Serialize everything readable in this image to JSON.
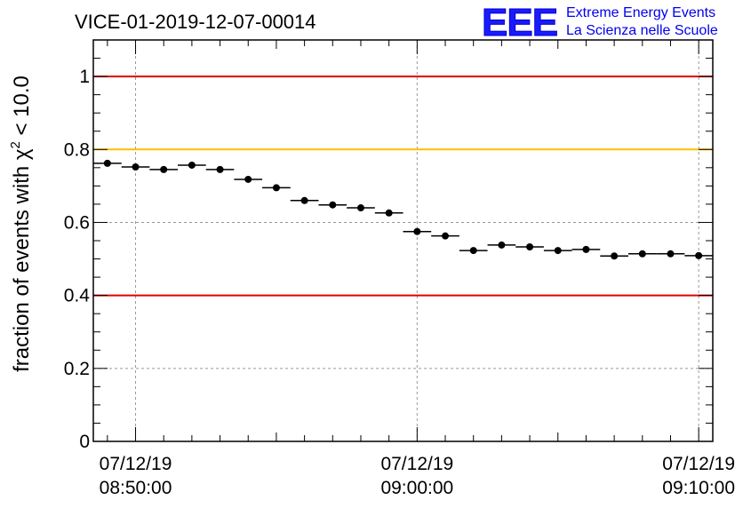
{
  "chart_data": {
    "type": "scatter",
    "title": "VICE-01-2019-12-07-00014",
    "ylabel": {
      "prefix": "fraction of events with ",
      "symbol": "χ",
      "superscript": "2",
      "suffix": " < 10.0"
    },
    "xlabel": "",
    "x_ticks": [
      {
        "date": "07/12/19",
        "time": "08:50:00"
      },
      {
        "date": "07/12/19",
        "time": "09:00:00"
      },
      {
        "date": "07/12/19",
        "time": "09:10:00"
      }
    ],
    "y_ticks": [
      "0",
      "0.2",
      "0.4",
      "0.6",
      "0.8",
      "1"
    ],
    "ylim": [
      0,
      1.1
    ],
    "xlim": [
      "08:48:30",
      "09:10:30"
    ],
    "grid": true,
    "bin_width_min": 1,
    "x": [
      "08:49:00",
      "08:50:00",
      "08:51:00",
      "08:52:00",
      "08:53:00",
      "08:54:00",
      "08:55:00",
      "08:56:00",
      "08:57:00",
      "08:58:00",
      "08:59:00",
      "09:00:00",
      "09:01:00",
      "09:02:00",
      "09:03:00",
      "09:04:00",
      "09:05:00",
      "09:06:00",
      "09:07:00",
      "09:08:00",
      "09:09:00",
      "09:10:00"
    ],
    "values": [
      0.762,
      0.752,
      0.745,
      0.757,
      0.745,
      0.718,
      0.695,
      0.66,
      0.648,
      0.64,
      0.626,
      0.575,
      0.563,
      0.523,
      0.538,
      0.533,
      0.523,
      0.526,
      0.508,
      0.514,
      0.514,
      0.509
    ],
    "reference_lines": [
      {
        "value": 1.0,
        "color": "#e00000"
      },
      {
        "value": 0.8,
        "color": "#ffc000"
      },
      {
        "value": 0.4,
        "color": "#e00000"
      }
    ]
  },
  "logo": {
    "letters": "EEE",
    "line1": "Extreme Energy Events",
    "line2": "La Scienza nelle Scuole"
  }
}
